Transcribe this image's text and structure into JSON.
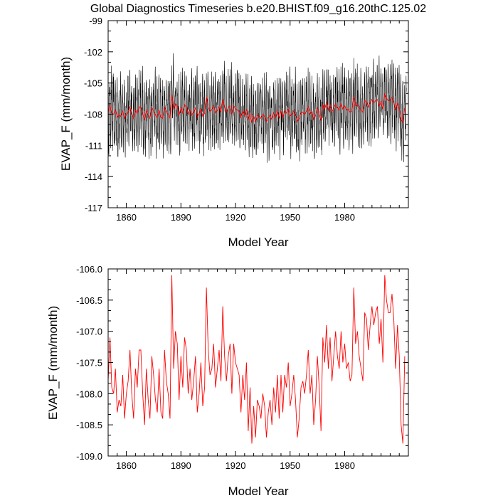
{
  "title": "Global Diagnostics Timeseries b.e20.BHIST.f09_g16.20thC.125.02",
  "chart_data": [
    {
      "type": "line",
      "xlabel": "Model Year",
      "ylabel": "EVAP_F (mm/month)",
      "xlim": [
        1850,
        2015
      ],
      "ylim": [
        -117,
        -99
      ],
      "xticks": [
        1860,
        1890,
        1920,
        1950,
        1980
      ],
      "yticks": [
        -117,
        -114,
        -111,
        -108,
        -105,
        -102,
        -99
      ],
      "series": [
        {
          "color": "#000000",
          "description": "monthly values (seasonal cycle)",
          "monthly": {
            "start_year": 1850,
            "mean": -107.6,
            "amplitude": 2.6
          }
        },
        {
          "color": "#ff0000",
          "description": "annual mean",
          "ref": "annual"
        }
      ]
    },
    {
      "type": "line",
      "xlabel": "Model Year",
      "ylabel": "EVAP_F (mm/month)",
      "xlim": [
        1850,
        2015
      ],
      "ylim": [
        -109.0,
        -106.0
      ],
      "xticks": [
        1860,
        1890,
        1920,
        1950,
        1980
      ],
      "yticks": [
        -109.0,
        -108.5,
        -108.0,
        -107.5,
        -107.0,
        -106.5,
        -106.0
      ],
      "series": [
        {
          "color": "#ff0000",
          "x_start": 1850,
          "values": [
            -107.8,
            -107.1,
            -107.9,
            -108.0,
            -107.6,
            -108.3,
            -108.1,
            -108.2,
            -107.7,
            -108.4,
            -108.0,
            -107.8,
            -107.3,
            -108.0,
            -108.4,
            -107.6,
            -107.9,
            -107.3,
            -107.3,
            -108.0,
            -108.5,
            -107.6,
            -108.1,
            -108.4,
            -107.4,
            -107.7,
            -108.1,
            -108.3,
            -107.6,
            -108.3,
            -108.4,
            -107.3,
            -107.8,
            -108.0,
            -108.4,
            -106.1,
            -107.6,
            -107.0,
            -107.2,
            -108.1,
            -107.4,
            -107.9,
            -107.1,
            -107.3,
            -108.0,
            -107.6,
            -108.1,
            -107.8,
            -107.4,
            -108.3,
            -108.0,
            -107.5,
            -108.2,
            -107.9,
            -106.3,
            -107.3,
            -107.7,
            -107.6,
            -107.2,
            -107.9,
            -107.6,
            -107.3,
            -107.8,
            -106.6,
            -107.4,
            -107.8,
            -107.4,
            -107.2,
            -108.0,
            -107.2,
            -107.5,
            -107.6,
            -107.7,
            -108.3,
            -107.7,
            -108.1,
            -107.5,
            -108.6,
            -107.9,
            -108.8,
            -108.2,
            -108.7,
            -108.1,
            -108.2,
            -108.4,
            -108.0,
            -108.2,
            -108.7,
            -108.3,
            -108.1,
            -108.5,
            -107.9,
            -108.3,
            -107.7,
            -108.4,
            -107.7,
            -108.3,
            -107.7,
            -107.9,
            -107.5,
            -108.2,
            -108.0,
            -107.7,
            -108.1,
            -108.7,
            -108.4,
            -107.9,
            -107.8,
            -108.0,
            -107.7,
            -107.3,
            -108.0,
            -107.7,
            -108.5,
            -108.1,
            -107.4,
            -107.9,
            -108.6,
            -107.1,
            -107.5,
            -106.9,
            -107.6,
            -107.1,
            -107.8,
            -107.4,
            -107.0,
            -107.4,
            -107.6,
            -107.0,
            -107.5,
            -107.2,
            -107.6,
            -107.5,
            -107.8,
            -107.7,
            -106.3,
            -107.2,
            -107.0,
            -107.4,
            -107.6,
            -107.8,
            -106.7,
            -106.8,
            -107.3,
            -106.9,
            -106.6,
            -106.9,
            -106.7,
            -106.6,
            -107.2,
            -106.8,
            -107.5,
            -106.1,
            -106.5,
            -106.7,
            -106.7,
            -106.4,
            -106.8,
            -107.6,
            -106.9,
            -107.4,
            -108.5,
            -108.8,
            -107.4
          ]
        }
      ]
    }
  ]
}
